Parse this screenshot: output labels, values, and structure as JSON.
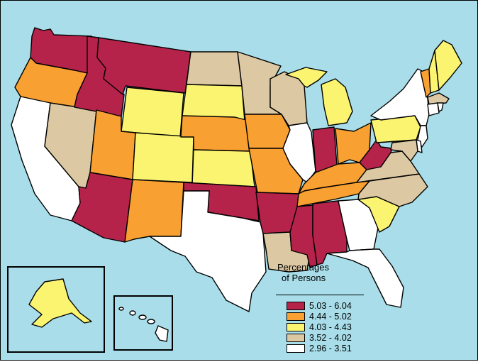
{
  "legend": {
    "title_line1": "Percentages",
    "title_line2": "of Persons",
    "classes": [
      {
        "label": "5.03 - 6.04",
        "color": "#b5234a"
      },
      {
        "label": "4.44 - 5.02",
        "color": "#f8a031"
      },
      {
        "label": "4.03 - 4.43",
        "color": "#fbf471"
      },
      {
        "label": "3.52 - 4.02",
        "color": "#dcc8a2"
      },
      {
        "label": "2.96 - 3.51",
        "color": "#ffffff"
      }
    ]
  },
  "background_color": "#a8dde9",
  "states": {
    "WA": 0,
    "OR": 1,
    "CA": 4,
    "NV": 3,
    "ID": 0,
    "MT": 0,
    "WY": 2,
    "UT": 1,
    "AZ": 0,
    "CO": 2,
    "NM": 1,
    "ND": 3,
    "SD": 2,
    "NE": 1,
    "KS": 2,
    "OK": 0,
    "TX": 4,
    "MN": 3,
    "IA": 1,
    "MO": 1,
    "AR": 0,
    "LA": 3,
    "WI": 3,
    "IL": 4,
    "MI": 2,
    "IN": 0,
    "OH": 1,
    "KY": 1,
    "TN": 1,
    "MS": 0,
    "AL": 0,
    "GA": 4,
    "FL": 4,
    "SC": 2,
    "NC": 3,
    "VA": 3,
    "WV": 0,
    "PA": 2,
    "NY": 4,
    "VT": 1,
    "NH": 2,
    "ME": 2,
    "MA": 3,
    "CT": 4,
    "RI": 4,
    "NJ": 4,
    "DE": 4,
    "MD": 3,
    "AK": 2,
    "HI": 4
  }
}
